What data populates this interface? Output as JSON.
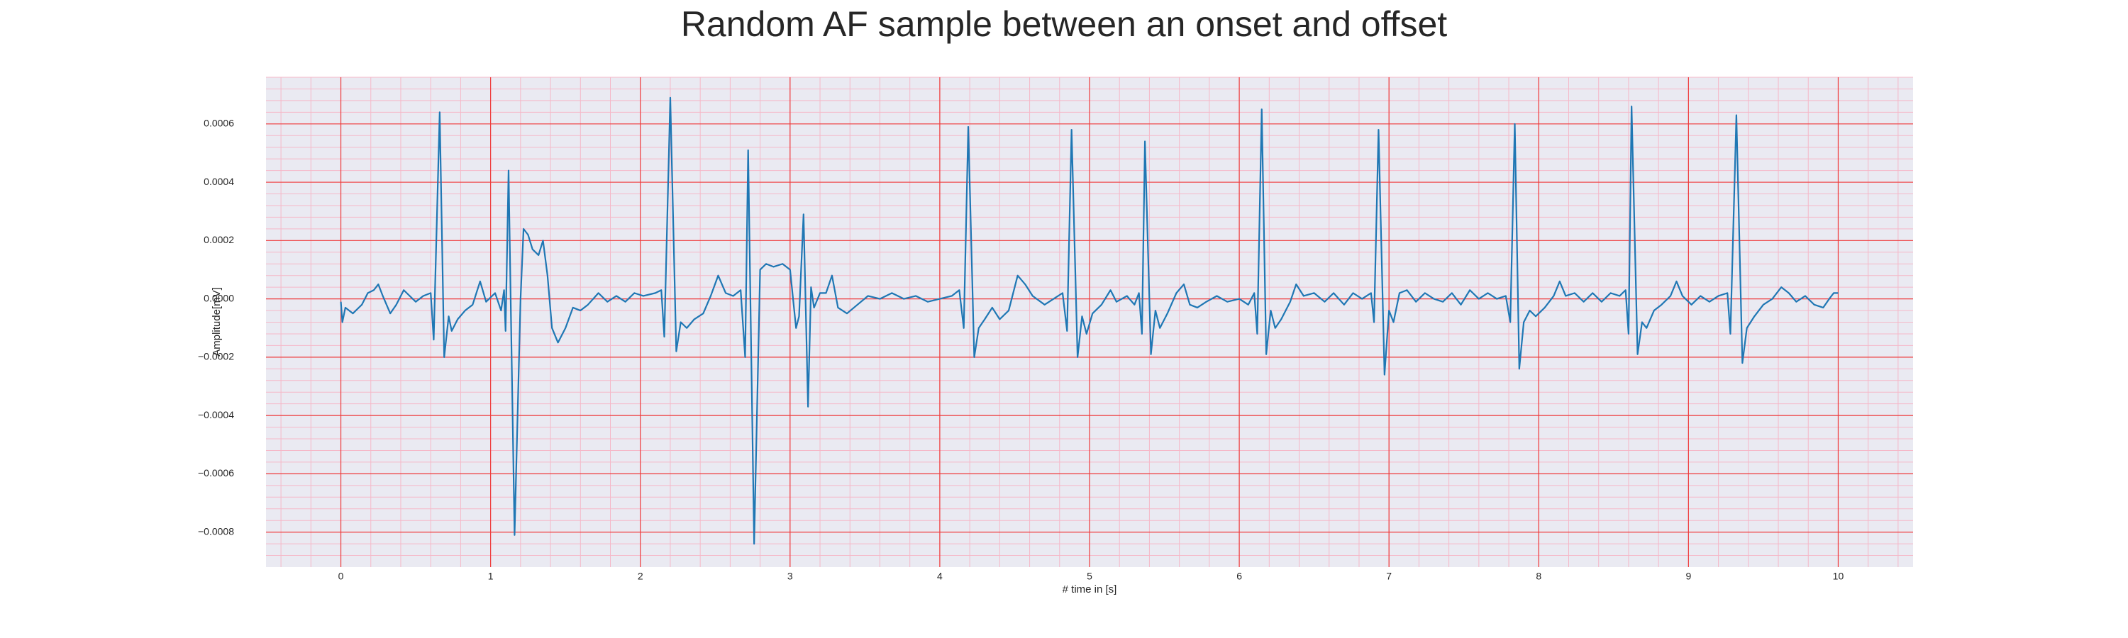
{
  "chart_data": {
    "type": "line",
    "title": "Random AF sample between an onset and offset",
    "xlabel": "# time in [s]",
    "ylabel": "Amplitude[mV]",
    "color": "#1f77b4",
    "grid": true,
    "minor_grid": true,
    "minor_divisions": 5,
    "xlim": [
      -0.5,
      10.5
    ],
    "xticks": [
      0,
      1,
      2,
      3,
      4,
      5,
      6,
      7,
      8,
      9,
      10
    ],
    "ylim": [
      -0.00092,
      0.00076
    ],
    "yticks": [
      {
        "value": -0.0008,
        "label": "−0.0008"
      },
      {
        "value": -0.0006,
        "label": "−0.0006"
      },
      {
        "value": -0.0004,
        "label": "−0.0004"
      },
      {
        "value": -0.0002,
        "label": "−0.0002"
      },
      {
        "value": 0,
        "label": "0.0000"
      },
      0.0002,
      0.0004,
      0.0006
    ],
    "x": [
      0.0,
      0.01,
      0.03,
      0.08,
      0.14,
      0.18,
      0.22,
      0.25,
      0.28,
      0.33,
      0.37,
      0.42,
      0.46,
      0.5,
      0.55,
      0.6,
      0.62,
      0.66,
      0.69,
      0.72,
      0.74,
      0.78,
      0.83,
      0.88,
      0.93,
      0.97,
      1.03,
      1.07,
      1.09,
      1.1,
      1.12,
      1.16,
      1.2,
      1.22,
      1.25,
      1.28,
      1.32,
      1.35,
      1.38,
      1.41,
      1.45,
      1.5,
      1.55,
      1.6,
      1.65,
      1.72,
      1.78,
      1.84,
      1.9,
      1.96,
      2.02,
      2.1,
      2.14,
      2.16,
      2.2,
      2.24,
      2.27,
      2.31,
      2.36,
      2.42,
      2.47,
      2.52,
      2.57,
      2.62,
      2.67,
      2.7,
      2.72,
      2.76,
      2.8,
      2.84,
      2.89,
      2.95,
      3.0,
      3.04,
      3.06,
      3.09,
      3.12,
      3.14,
      3.16,
      3.2,
      3.24,
      3.28,
      3.32,
      3.38,
      3.45,
      3.52,
      3.6,
      3.68,
      3.76,
      3.84,
      3.92,
      4.0,
      4.08,
      4.13,
      4.16,
      4.19,
      4.23,
      4.26,
      4.3,
      4.35,
      4.4,
      4.46,
      4.52,
      4.57,
      4.62,
      4.7,
      4.76,
      4.82,
      4.85,
      4.88,
      4.92,
      4.95,
      4.98,
      5.02,
      5.08,
      5.14,
      5.18,
      5.25,
      5.3,
      5.33,
      5.35,
      5.37,
      5.41,
      5.44,
      5.47,
      5.52,
      5.58,
      5.63,
      5.67,
      5.72,
      5.78,
      5.85,
      5.92,
      6.0,
      6.06,
      6.1,
      6.12,
      6.15,
      6.18,
      6.21,
      6.24,
      6.28,
      6.34,
      6.38,
      6.43,
      6.5,
      6.57,
      6.63,
      6.7,
      6.76,
      6.82,
      6.88,
      6.9,
      6.93,
      6.97,
      7.0,
      7.03,
      7.07,
      7.12,
      7.18,
      7.24,
      7.3,
      7.36,
      7.42,
      7.48,
      7.54,
      7.6,
      7.66,
      7.72,
      7.78,
      7.81,
      7.84,
      7.87,
      7.9,
      7.94,
      7.98,
      8.04,
      8.1,
      8.14,
      8.18,
      8.24,
      8.3,
      8.36,
      8.42,
      8.48,
      8.54,
      8.58,
      8.6,
      8.62,
      8.66,
      8.69,
      8.72,
      8.77,
      8.82,
      8.88,
      8.92,
      8.96,
      9.02,
      9.08,
      9.14,
      9.2,
      9.26,
      9.28,
      9.32,
      9.36,
      9.39,
      9.44,
      9.5,
      9.56,
      9.62,
      9.67,
      9.72,
      9.78,
      9.84,
      9.9,
      9.94,
      9.97,
      10.0
    ],
    "values": [
      -1e-05,
      -8e-05,
      -3e-05,
      -5e-05,
      -2e-05,
      2e-05,
      3e-05,
      5e-05,
      1e-05,
      -5e-05,
      -2e-05,
      3e-05,
      1e-05,
      -1e-05,
      1e-05,
      2e-05,
      -0.00014,
      0.00064,
      -0.0002,
      -6e-05,
      -0.00011,
      -7e-05,
      -4e-05,
      -2e-05,
      6e-05,
      -1e-05,
      2e-05,
      -4e-05,
      3e-05,
      -0.00011,
      0.00044,
      -0.00081,
      0.0,
      0.00024,
      0.00022,
      0.00017,
      0.00015,
      0.0002,
      8e-05,
      -0.0001,
      -0.00015,
      -0.0001,
      -3e-05,
      -4e-05,
      -2e-05,
      2e-05,
      -1e-05,
      1e-05,
      -1e-05,
      2e-05,
      1e-05,
      2e-05,
      3e-05,
      -0.00013,
      0.00069,
      -0.00018,
      -8e-05,
      -0.0001,
      -7e-05,
      -5e-05,
      1e-05,
      8e-05,
      2e-05,
      1e-05,
      3e-05,
      -0.0002,
      0.00051,
      -0.00084,
      0.0001,
      0.00012,
      0.00011,
      0.00012,
      0.0001,
      -0.0001,
      -6e-05,
      0.00029,
      -0.00037,
      4e-05,
      -3e-05,
      2e-05,
      2e-05,
      8e-05,
      -3e-05,
      -5e-05,
      -2e-05,
      1e-05,
      0.0,
      2e-05,
      0.0,
      1e-05,
      -1e-05,
      0.0,
      1e-05,
      3e-05,
      -0.0001,
      0.00059,
      -0.0002,
      -0.0001,
      -7e-05,
      -3e-05,
      -7e-05,
      -4e-05,
      8e-05,
      5e-05,
      1e-05,
      -2e-05,
      0.0,
      2e-05,
      -0.00011,
      0.00058,
      -0.0002,
      -6e-05,
      -0.00012,
      -5e-05,
      -2e-05,
      3e-05,
      -1e-05,
      1e-05,
      -2e-05,
      2e-05,
      -0.00012,
      0.00054,
      -0.00019,
      -4e-05,
      -0.0001,
      -5e-05,
      2e-05,
      5e-05,
      -2e-05,
      -3e-05,
      -1e-05,
      1e-05,
      -1e-05,
      0.0,
      -2e-05,
      2e-05,
      -0.00012,
      0.00065,
      -0.00019,
      -4e-05,
      -0.0001,
      -7e-05,
      -1e-05,
      5e-05,
      1e-05,
      2e-05,
      -1e-05,
      2e-05,
      -2e-05,
      2e-05,
      0.0,
      2e-05,
      -8e-05,
      0.00058,
      -0.00026,
      -4e-05,
      -8e-05,
      2e-05,
      3e-05,
      -1e-05,
      2e-05,
      0.0,
      -1e-05,
      2e-05,
      -2e-05,
      3e-05,
      0.0,
      2e-05,
      0.0,
      1e-05,
      -8e-05,
      0.0006,
      -0.00024,
      -8e-05,
      -4e-05,
      -6e-05,
      -3e-05,
      1e-05,
      6e-05,
      1e-05,
      2e-05,
      -1e-05,
      2e-05,
      -1e-05,
      2e-05,
      1e-05,
      3e-05,
      -0.00012,
      0.00066,
      -0.00019,
      -8e-05,
      -0.0001,
      -4e-05,
      -2e-05,
      1e-05,
      6e-05,
      1e-05,
      -2e-05,
      1e-05,
      -1e-05,
      1e-05,
      2e-05,
      -0.00012,
      0.00063,
      -0.00022,
      -0.0001,
      -6e-05,
      -2e-05,
      0.0,
      4e-05,
      2e-05,
      -1e-05,
      1e-05,
      -2e-05,
      -3e-05,
      0.0,
      2e-05,
      2e-05
    ]
  }
}
